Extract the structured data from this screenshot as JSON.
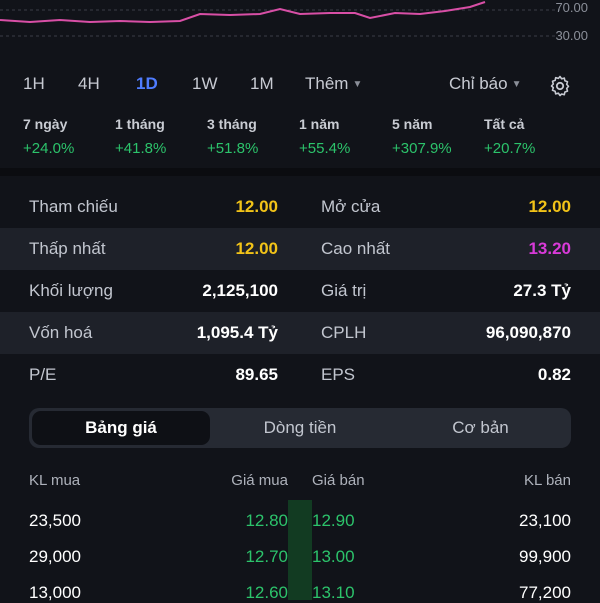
{
  "chart": {
    "rsi_upper": "70.00",
    "rsi_lower": "30.00",
    "line_color": "#d84fa6"
  },
  "timeframes": {
    "items": [
      "1H",
      "4H",
      "1D",
      "1W",
      "1M"
    ],
    "active": "1D",
    "more_label": "Thêm",
    "indicator_label": "Chỉ báo"
  },
  "performance": [
    {
      "label": "7 ngày",
      "value": "+24.0%"
    },
    {
      "label": "1 tháng",
      "value": "+41.8%"
    },
    {
      "label": "3 tháng",
      "value": "+51.8%"
    },
    {
      "label": "1 năm",
      "value": "+55.4%"
    },
    {
      "label": "5 năm",
      "value": "+307.9%"
    },
    {
      "label": "Tất cả",
      "value": "+20.7%"
    }
  ],
  "stats": [
    {
      "k1": "Tham chiếu",
      "v1": "12.00",
      "k2": "Mở cửa",
      "v2": "12.00"
    },
    {
      "k1": "Thấp nhất",
      "v1": "12.00",
      "k2": "Cao nhất",
      "v2": "13.20"
    },
    {
      "k1": "Khối lượng",
      "v1": "2,125,100",
      "k2": "Giá trị",
      "v2": "27.3 Tỷ"
    },
    {
      "k1": "Vốn hoá",
      "v1": "1,095.4 Tỷ",
      "k2": "CPLH",
      "v2": "96,090,870"
    },
    {
      "k1": "P/E",
      "v1": "89.65",
      "k2": "EPS",
      "v2": "0.82"
    }
  ],
  "tabs": {
    "price_board": "Bảng giá",
    "money_flow": "Dòng tiền",
    "fundamentals": "Cơ bản"
  },
  "orderbook": {
    "headers": {
      "bid_vol": "KL mua",
      "bid_price": "Giá mua",
      "ask_price": "Giá bán",
      "ask_vol": "KL bán"
    },
    "rows": [
      {
        "bid_vol": "23,500",
        "bid_price": "12.80",
        "ask_price": "12.90",
        "ask_vol": "23,100"
      },
      {
        "bid_vol": "29,000",
        "bid_price": "12.70",
        "ask_price": "13.00",
        "ask_vol": "99,900"
      },
      {
        "bid_vol": "13,000",
        "bid_price": "12.60",
        "ask_price": "13.10",
        "ask_vol": "77,200"
      }
    ]
  },
  "colors": {
    "accent": "#4f7cff",
    "up": "#2cc36b",
    "ref": "#f2c318",
    "ceiling": "#d83ad8"
  }
}
